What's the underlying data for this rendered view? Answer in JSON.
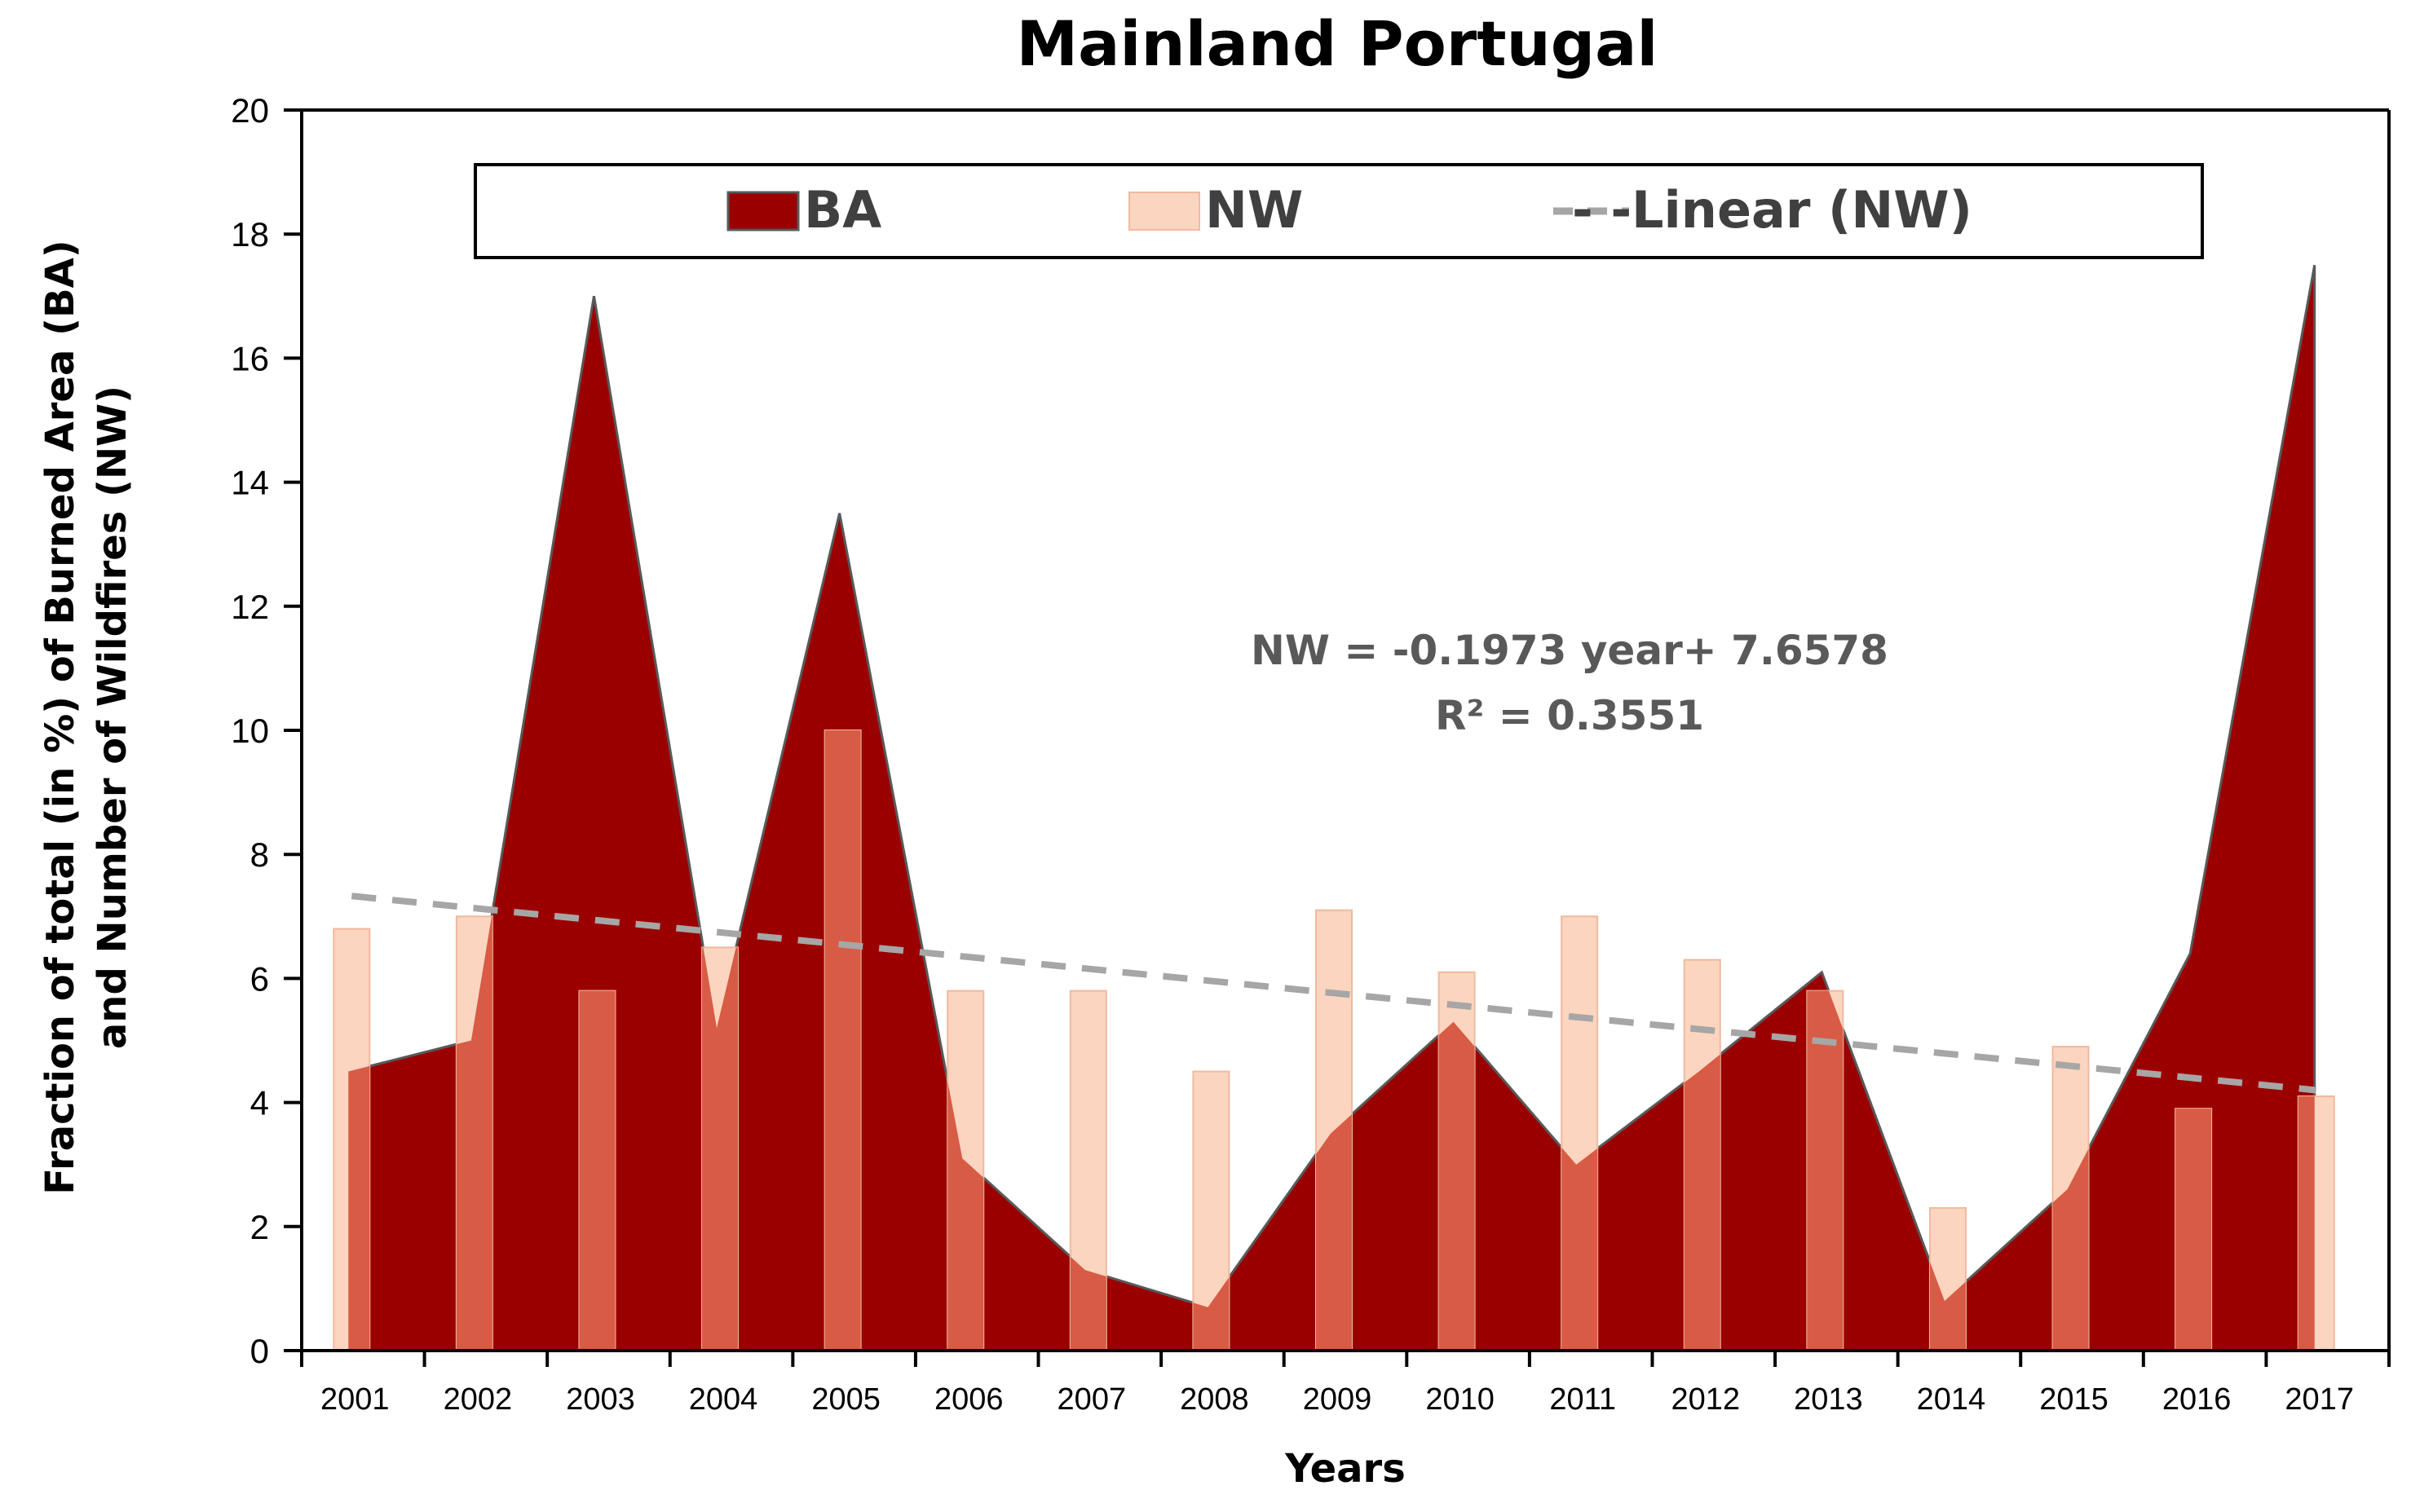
{
  "chart_data": {
    "type": "area",
    "title": "Mainland Portugal",
    "xlabel": "Years",
    "ylabel_line1": "Fraction of total (in %) of Burned Area (BA)",
    "ylabel_line2": "and Number of Wildfires (NW)",
    "ylim": [
      0,
      20
    ],
    "ytick_step": 2,
    "categories": [
      "2001",
      "2002",
      "2003",
      "2004",
      "2005",
      "2006",
      "2007",
      "2008",
      "2009",
      "2010",
      "2011",
      "2012",
      "2013",
      "2014",
      "2015",
      "2016",
      "2017"
    ],
    "series": [
      {
        "name": "BA",
        "kind": "area",
        "color": "#9b0000",
        "overlap_color": "#d85b45",
        "values": [
          4.5,
          5.0,
          17.0,
          5.2,
          13.5,
          3.1,
          1.3,
          0.7,
          3.5,
          5.3,
          3.0,
          4.5,
          6.1,
          0.8,
          2.6,
          6.4,
          17.5
        ]
      },
      {
        "name": "NW",
        "kind": "bar",
        "color": "#fbd5bf",
        "values": [
          6.8,
          7.0,
          5.8,
          6.5,
          10.0,
          5.8,
          5.8,
          4.5,
          7.1,
          6.1,
          7.0,
          6.3,
          5.8,
          2.3,
          4.9,
          3.9,
          4.1
        ]
      },
      {
        "name": "Linear (NW)",
        "kind": "trendline",
        "color": "#a6a6a6",
        "slope": -0.1973,
        "intercept": 7.6578
      }
    ],
    "annotation": {
      "equation": "NW = -0.1973 year+ 7.6578",
      "r2": "R² = 0.3551"
    },
    "legend": {
      "position": "top",
      "entries": [
        "BA",
        "NW",
        "- -Linear (NW)"
      ]
    },
    "grid": false
  }
}
